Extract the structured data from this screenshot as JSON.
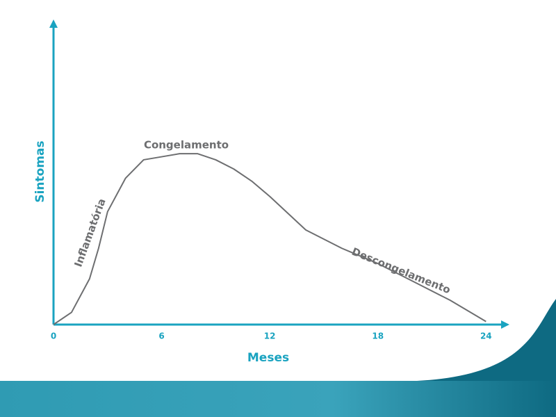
{
  "chart_data": {
    "type": "line",
    "x_label": "Meses",
    "y_label": "Sintomas",
    "x": [
      0,
      1,
      2,
      2.5,
      3,
      4,
      5,
      6,
      7,
      8,
      9,
      10,
      11,
      12,
      14,
      16,
      18,
      20,
      22,
      24
    ],
    "series": [
      {
        "color": "#6d6e70",
        "values": [
          0,
          4,
          15,
          25,
          37,
          48,
          54,
          55,
          56,
          56,
          54,
          51,
          47,
          42,
          31,
          25,
          20,
          14,
          8,
          1
        ]
      }
    ],
    "annotations": [
      "Congelamento",
      "Inflamatória",
      "Descongelamento"
    ],
    "xlim": [
      0,
      25.3
    ],
    "xticks": [
      0,
      6,
      12,
      18,
      24
    ],
    "ylim": [
      0,
      100
    ],
    "grid": false,
    "axis_color": "#1aa3c0"
  }
}
